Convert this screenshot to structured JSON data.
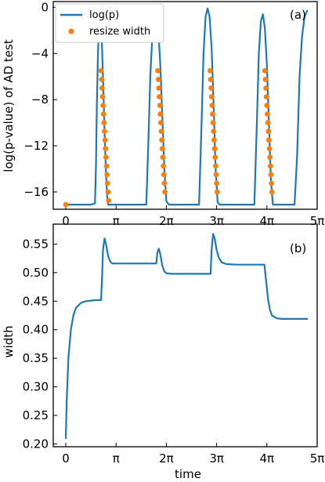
{
  "chart_data": [
    {
      "type": "line",
      "panel_label": "(a)",
      "xlabel": "",
      "ylabel": "log(p-value) of AD test",
      "xlim": [
        -0.25,
        5.0
      ],
      "xunit": "π",
      "ylim": [
        -17.5,
        0.5
      ],
      "xticks": [
        0,
        1,
        2,
        3,
        4,
        5
      ],
      "xtick_labels": [
        "0",
        "π",
        "2π",
        "3π",
        "4π",
        "5π"
      ],
      "yticks": [
        0,
        -4,
        -8,
        -12,
        -16
      ],
      "ytick_labels": [
        "0",
        "−4",
        "−8",
        "−12",
        "−16"
      ],
      "grid": false,
      "legend_position": "top-left",
      "colors": {
        "line": "#1f77b4",
        "markers": "#ff7f0e"
      },
      "series": [
        {
          "name": "log(p)",
          "kind": "line",
          "x": [
            0,
            0.5,
            0.58,
            0.6,
            0.62,
            0.64,
            0.66,
            0.68,
            0.7,
            0.72,
            0.74,
            0.76,
            0.78,
            0.8,
            0.82,
            0.84,
            0.86,
            0.88,
            0.9,
            1.2,
            1.6,
            1.64,
            1.68,
            1.72,
            1.76,
            1.8,
            1.84,
            1.88,
            1.92,
            1.96,
            2.0,
            2.05,
            2.3,
            2.65,
            2.7,
            2.74,
            2.78,
            2.82,
            2.86,
            2.9,
            2.94,
            2.98,
            3.02,
            3.06,
            3.12,
            3.3,
            3.75,
            3.8,
            3.84,
            3.88,
            3.92,
            3.96,
            4.0,
            4.04,
            4.08,
            4.12,
            4.2,
            4.3,
            4.55,
            4.6,
            4.65,
            4.7,
            4.75,
            4.8
          ],
          "y": [
            -17.1,
            -17.1,
            -17.0,
            -13.5,
            -8.0,
            -4.0,
            -1.5,
            -0.6,
            -1.5,
            -3.5,
            -6.0,
            -9.0,
            -12.0,
            -14.5,
            -16.3,
            -17.1,
            -17.1,
            -17.1,
            -17.1,
            -17.1,
            -17.1,
            -12.0,
            -6.0,
            -2.5,
            -1.0,
            -0.8,
            -2.0,
            -5.0,
            -9.5,
            -14.0,
            -16.8,
            -17.1,
            -17.1,
            -17.1,
            -10.0,
            -4.0,
            -0.8,
            -0.1,
            -0.8,
            -3.5,
            -8.5,
            -14.0,
            -16.9,
            -17.1,
            -17.1,
            -17.1,
            -17.1,
            -10.0,
            -4.0,
            -1.2,
            -0.6,
            -1.8,
            -5.0,
            -10.0,
            -15.0,
            -17.1,
            -17.1,
            -17.1,
            -17.1,
            -13.0,
            -6.0,
            -2.5,
            -0.8,
            -0.3
          ]
        },
        {
          "name": "resize width",
          "kind": "scatter",
          "x": [
            0.0,
            0.7,
            0.71,
            0.72,
            0.73,
            0.74,
            0.75,
            0.76,
            0.77,
            0.78,
            0.79,
            0.8,
            0.81,
            0.82,
            0.83,
            0.84,
            0.85,
            1.83,
            1.84,
            1.85,
            1.86,
            1.87,
            1.88,
            1.89,
            1.9,
            1.91,
            1.92,
            1.93,
            1.94,
            1.95,
            1.96,
            1.97,
            2.87,
            2.88,
            2.89,
            2.9,
            2.91,
            2.92,
            2.93,
            2.94,
            2.95,
            2.96,
            2.97,
            2.98,
            2.99,
            3.0,
            3.01,
            3.96,
            3.97,
            3.98,
            3.99,
            4.0,
            4.01,
            4.02,
            4.03,
            4.04,
            4.05,
            4.06,
            4.07,
            4.08,
            4.09,
            4.1
          ],
          "y": [
            -17.1,
            -5.5,
            -6.25,
            -7.0,
            -7.75,
            -8.5,
            -9.25,
            -10.0,
            -10.75,
            -11.5,
            -12.25,
            -13.0,
            -13.75,
            -14.5,
            -15.25,
            -16.0,
            -16.75,
            -5.5,
            -6.25,
            -7.0,
            -7.75,
            -8.5,
            -9.25,
            -10.0,
            -10.75,
            -11.5,
            -12.25,
            -13.0,
            -13.75,
            -14.5,
            -15.25,
            -16.0,
            -5.5,
            -6.25,
            -7.0,
            -7.75,
            -8.5,
            -9.25,
            -10.0,
            -10.75,
            -11.5,
            -12.25,
            -13.0,
            -13.75,
            -14.5,
            -15.25,
            -16.0,
            -5.5,
            -6.25,
            -7.0,
            -7.75,
            -8.5,
            -9.25,
            -10.0,
            -10.75,
            -11.5,
            -12.25,
            -13.0,
            -13.75,
            -14.5,
            -15.25,
            -16.0
          ]
        }
      ]
    },
    {
      "type": "line",
      "panel_label": "(b)",
      "xlabel": "time",
      "ylabel": "width",
      "xlim": [
        -0.25,
        5.0
      ],
      "xunit": "π",
      "ylim": [
        0.195,
        0.585
      ],
      "xticks": [
        0,
        1,
        2,
        3,
        4,
        5
      ],
      "xtick_labels": [
        "0",
        "π",
        "2π",
        "3π",
        "4π",
        "5π"
      ],
      "yticks": [
        0.2,
        0.25,
        0.3,
        0.35,
        0.4,
        0.45,
        0.5,
        0.55
      ],
      "ytick_labels": [
        "0.20",
        "0.25",
        "0.30",
        "0.35",
        "0.40",
        "0.45",
        "0.50",
        "0.55"
      ],
      "grid": false,
      "colors": {
        "line": "#1f77b4"
      },
      "series": [
        {
          "kind": "line",
          "x": [
            0.0,
            0.02,
            0.05,
            0.1,
            0.15,
            0.2,
            0.3,
            0.4,
            0.5,
            0.6,
            0.7,
            0.72,
            0.74,
            0.77,
            0.8,
            0.84,
            0.88,
            0.92,
            1.0,
            1.2,
            1.5,
            1.8,
            1.82,
            1.85,
            1.88,
            1.92,
            1.96,
            2.0,
            2.1,
            2.3,
            2.6,
            2.88,
            2.9,
            2.93,
            2.96,
            3.0,
            3.04,
            3.1,
            3.2,
            3.4,
            3.8,
            3.95,
            3.98,
            4.02,
            4.06,
            4.1,
            4.2,
            4.3,
            4.8
          ],
          "y": [
            0.21,
            0.28,
            0.35,
            0.4,
            0.425,
            0.438,
            0.447,
            0.45,
            0.451,
            0.452,
            0.452,
            0.49,
            0.54,
            0.56,
            0.55,
            0.53,
            0.52,
            0.516,
            0.516,
            0.516,
            0.516,
            0.516,
            0.535,
            0.542,
            0.532,
            0.512,
            0.502,
            0.499,
            0.498,
            0.498,
            0.498,
            0.498,
            0.54,
            0.568,
            0.56,
            0.54,
            0.527,
            0.518,
            0.515,
            0.514,
            0.514,
            0.514,
            0.49,
            0.455,
            0.435,
            0.425,
            0.42,
            0.419,
            0.419
          ]
        }
      ]
    }
  ]
}
